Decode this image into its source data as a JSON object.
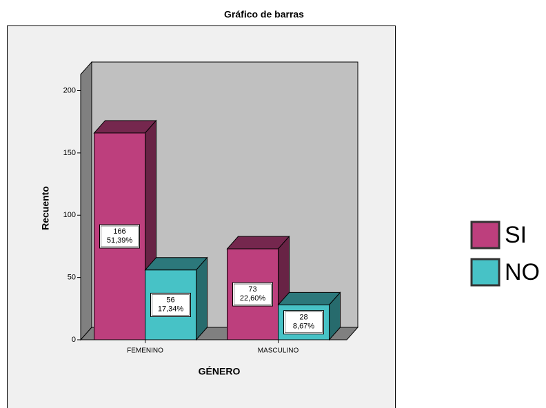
{
  "chart_data": {
    "type": "bar3d",
    "title": "Gráfico de barras",
    "x_label": "GÉNERO",
    "y_label": "Recuento",
    "categories": [
      "FEMENINO",
      "MASCULINO"
    ],
    "series": [
      {
        "name": "SI",
        "color": "#bd3f7d",
        "values": [
          166,
          73
        ],
        "percent_labels": [
          "51,39%",
          "22,60%"
        ]
      },
      {
        "name": "NO",
        "color": "#47c2c6",
        "values": [
          56,
          28
        ],
        "percent_labels": [
          "17,34%",
          "8,67%"
        ]
      }
    ],
    "ylim": [
      0,
      213
    ],
    "yticks": [
      0,
      50,
      100,
      150,
      200
    ],
    "legend": "right"
  }
}
